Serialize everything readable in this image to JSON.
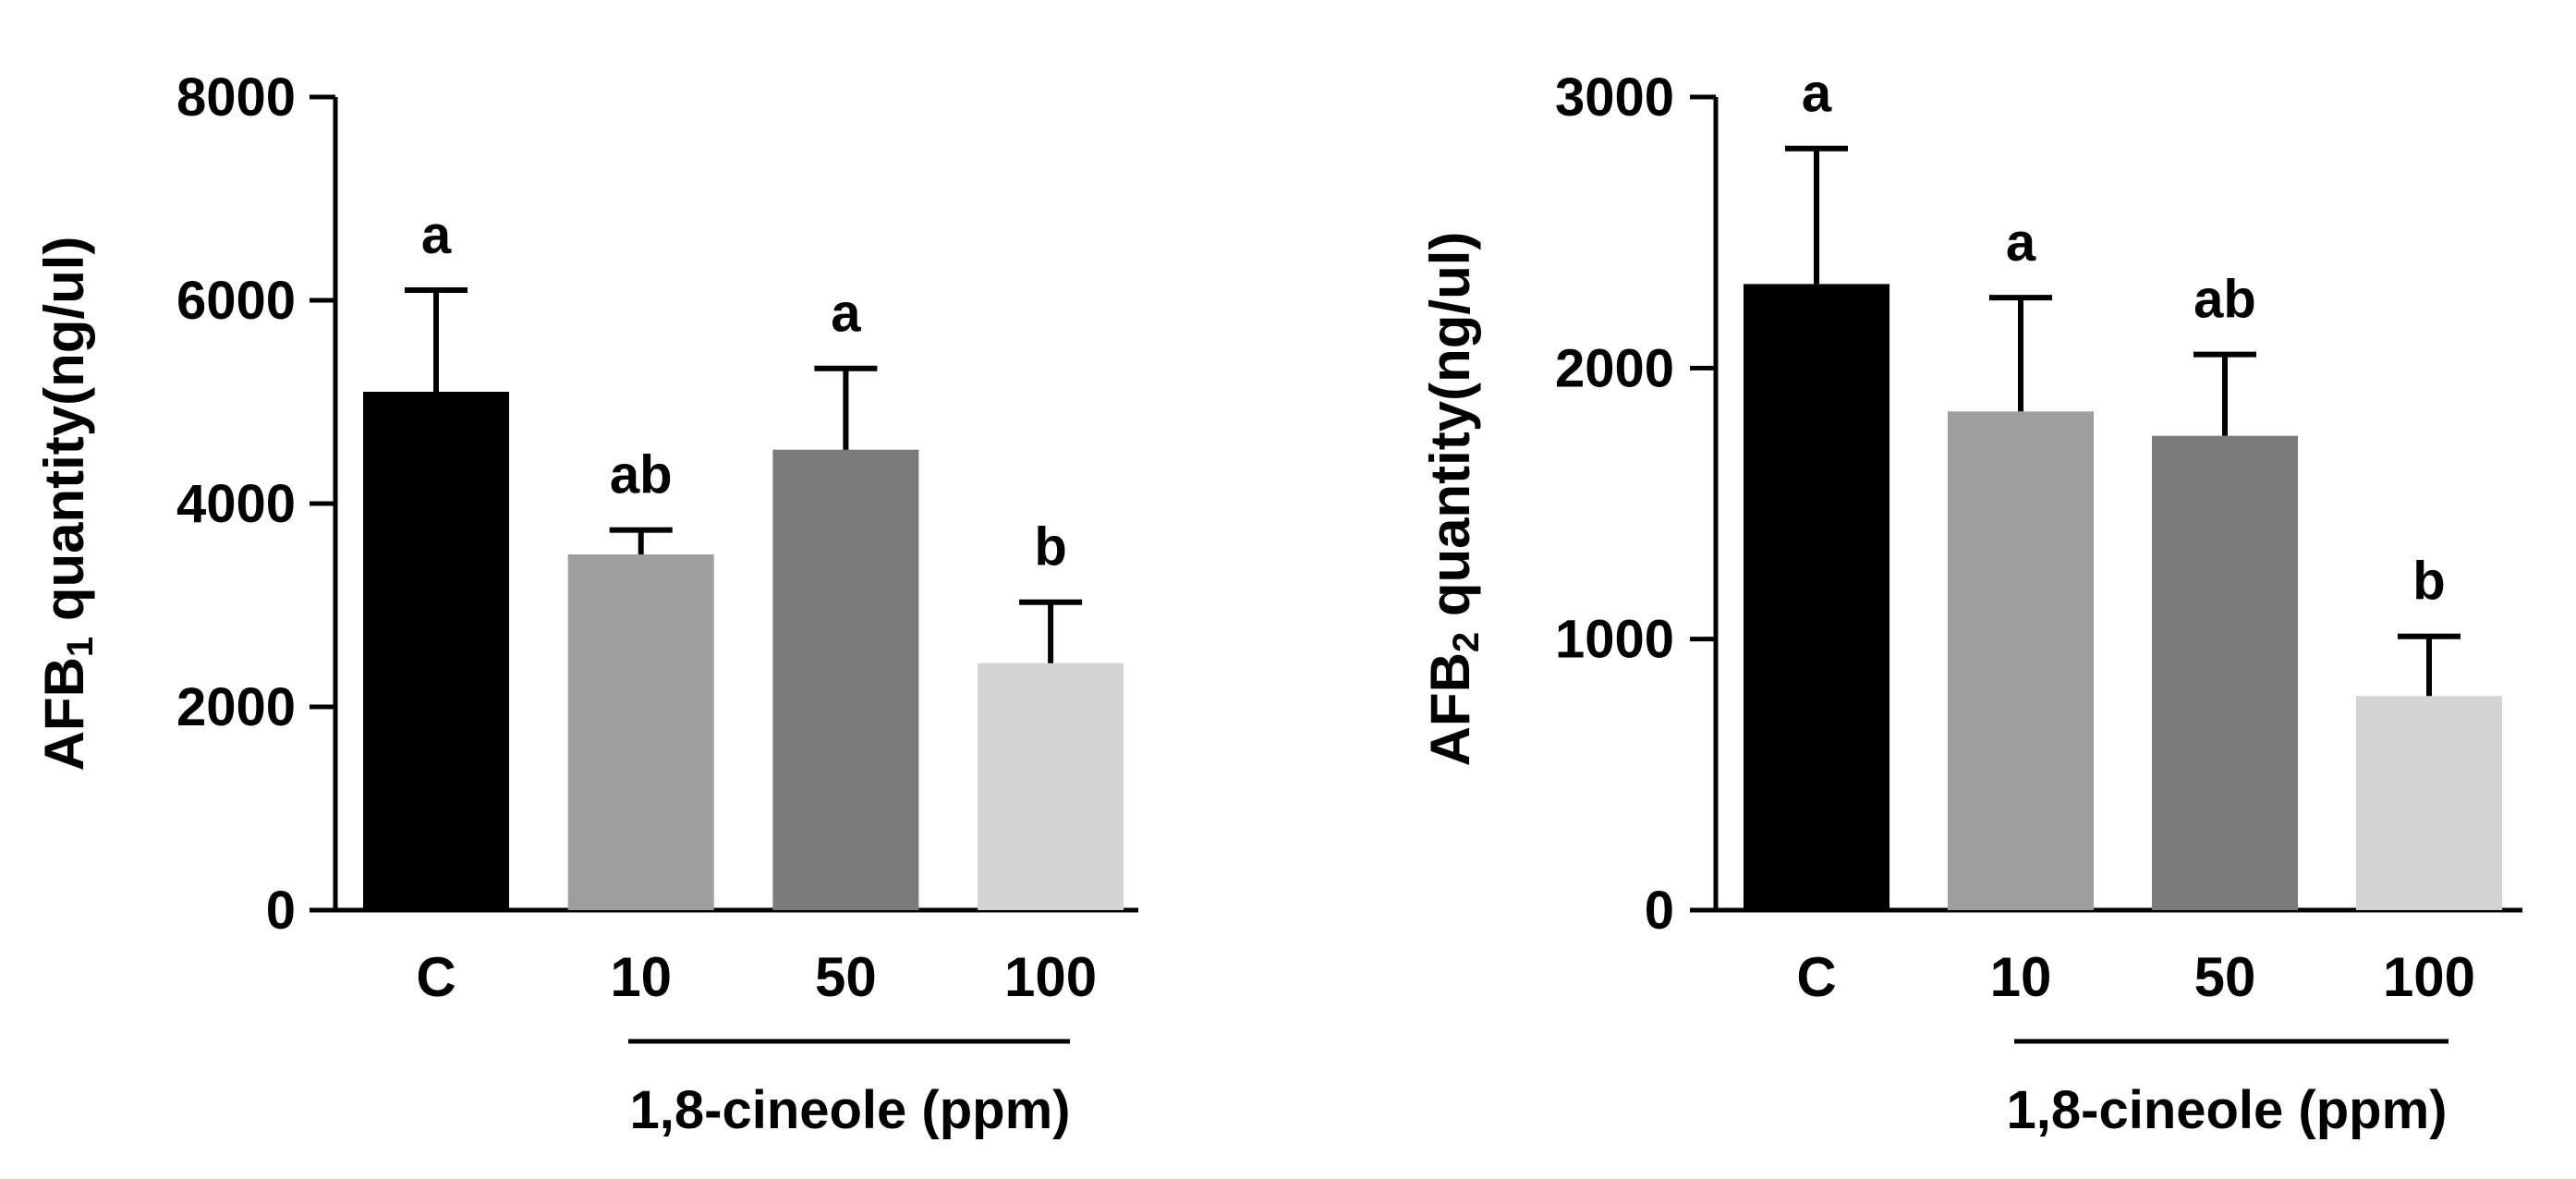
{
  "chart_data": [
    {
      "type": "bar",
      "categories": [
        "C",
        "10",
        "50",
        "100"
      ],
      "values": [
        5100,
        3500,
        4530,
        2430
      ],
      "errors": [
        1000,
        240,
        800,
        600
      ],
      "significance": [
        "a",
        "ab",
        "a",
        "b"
      ],
      "colors": [
        "#000000",
        "#9e9e9e",
        "#7b7b7b",
        "#d4d4d4"
      ],
      "ylim": [
        0,
        8000
      ],
      "yticks": [
        "0",
        "2000",
        "4000",
        "6000",
        "8000"
      ],
      "ylabel_prefix": "AFB",
      "ylabel_sub": "1",
      "ylabel_suffix": " quantity(ng/ul)",
      "group_label": "1,8-cineole (ppm)",
      "title": "",
      "xlabel": ""
    },
    {
      "type": "bar",
      "categories": [
        "C",
        "10",
        "50",
        "100"
      ],
      "values": [
        2310,
        1840,
        1750,
        790
      ],
      "errors": [
        500,
        420,
        300,
        220
      ],
      "significance": [
        "a",
        "a",
        "ab",
        "b"
      ],
      "colors": [
        "#000000",
        "#9e9e9e",
        "#7b7b7b",
        "#d4d4d4"
      ],
      "ylim": [
        0,
        3000
      ],
      "yticks": [
        "0",
        "1000",
        "2000",
        "3000"
      ],
      "ylabel_prefix": "AFB",
      "ylabel_sub": "2",
      "ylabel_suffix": " quantity(ng/ul)",
      "group_label": "1,8-cineole (ppm)",
      "title": "",
      "xlabel": ""
    }
  ]
}
